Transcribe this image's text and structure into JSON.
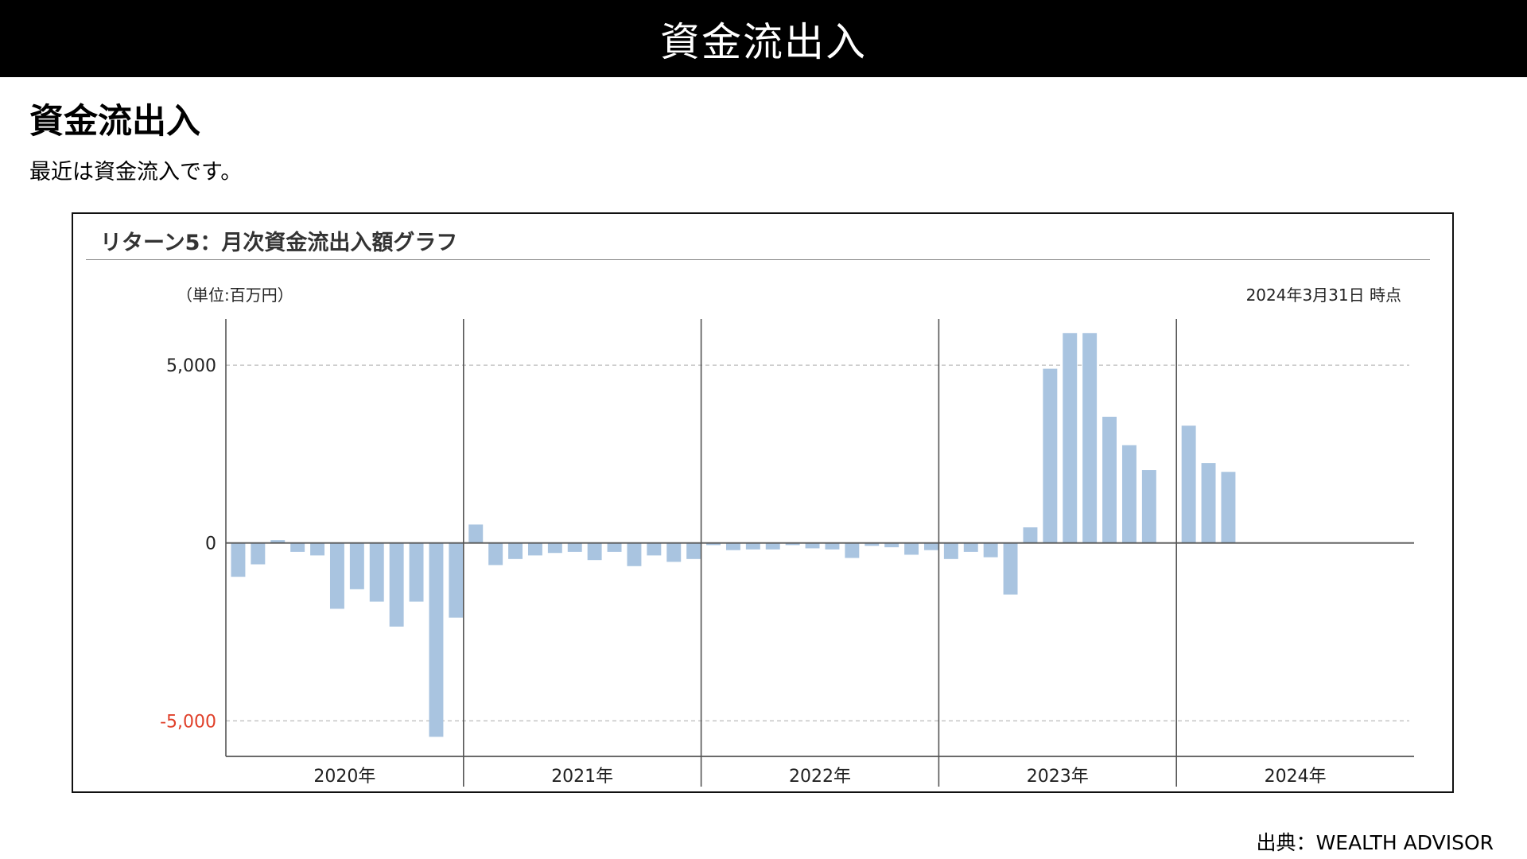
{
  "banner": {
    "title": "資金流出入"
  },
  "heading": "資金流出入",
  "subtitle": "最近は資金流入です。",
  "chart_panel": {
    "title": "リターン5：月次資金流出入額グラフ"
  },
  "source": {
    "label": "出典：",
    "name": "WEALTH ADVISOR"
  },
  "colors": {
    "bar": "#a9c4e0",
    "negative_tick": "#e0402a",
    "axis": "#555555",
    "grid": "#bbbbbb"
  },
  "chart_data": {
    "type": "bar",
    "unit_label": "（単位:百万円）",
    "as_of": "2024年3月31日 時点",
    "ylim": [
      -6000,
      6300
    ],
    "yticks": [
      5000,
      0,
      -5000
    ],
    "ytick_labels": [
      "5,000",
      "0",
      "-5,000"
    ],
    "grid": "dashed-horizontal",
    "year_groups": [
      {
        "label": "2020年",
        "values": [
          -950,
          -600,
          80,
          -250,
          -350,
          -1850,
          -1300,
          -1650,
          -2350,
          -1650,
          -5450,
          -2100
        ]
      },
      {
        "label": "2021年",
        "values": [
          520,
          -620,
          -450,
          -350,
          -280,
          -250,
          -480,
          -250,
          -650,
          -350,
          -530,
          -450
        ]
      },
      {
        "label": "2022年",
        "values": [
          -60,
          -200,
          -180,
          -180,
          -60,
          -150,
          -180,
          -420,
          -80,
          -120,
          -330,
          -200
        ]
      },
      {
        "label": "2023年",
        "values": [
          -450,
          -250,
          -400,
          -1450,
          440,
          4900,
          5900,
          5900,
          3550,
          2750,
          2050
        ]
      },
      {
        "label": "2024年",
        "values": [
          3300,
          2250,
          2000
        ]
      }
    ]
  }
}
